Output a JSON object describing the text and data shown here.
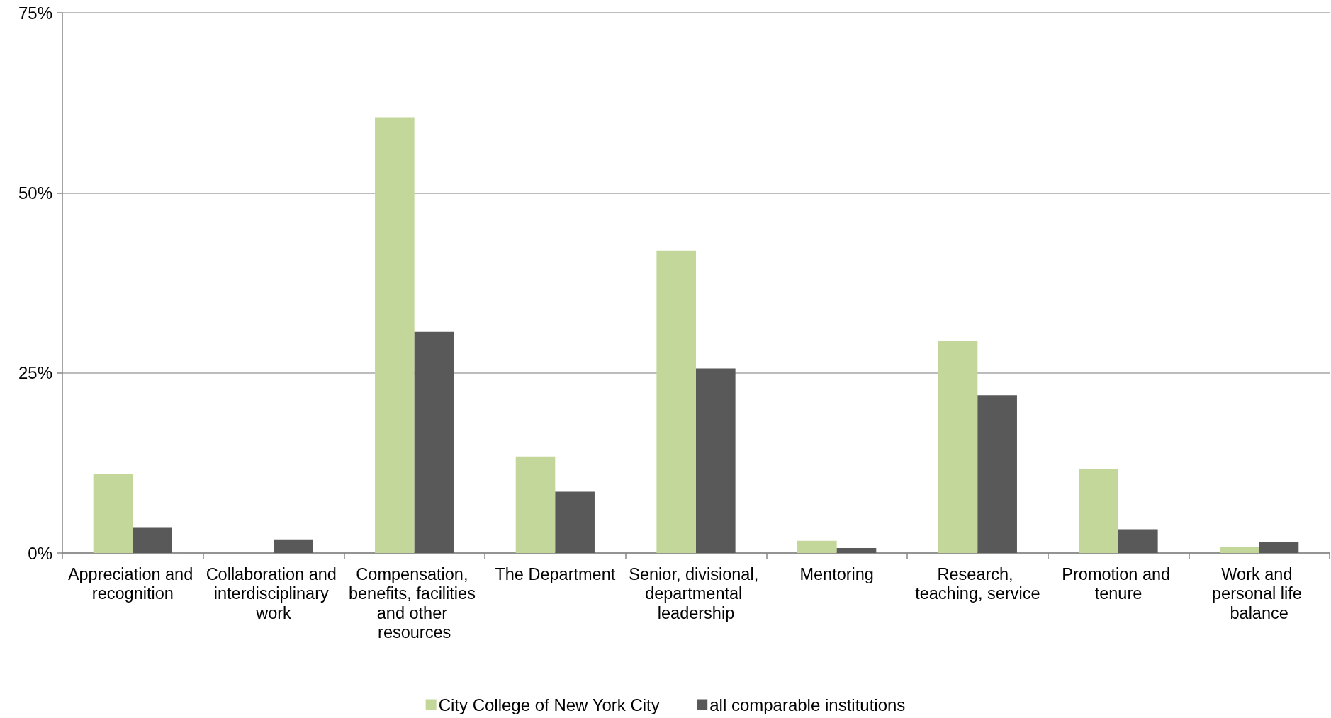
{
  "chart_data": {
    "type": "bar",
    "categories": [
      "Appreciation and recognition",
      "Collaboration and interdisciplinary work",
      "Compensation, benefits, facilities and other resources",
      "The Department",
      "Senior, divisional, departmental leadership",
      "Mentoring",
      "Research, teaching, service",
      "Promotion and tenure",
      "Work and personal life balance"
    ],
    "series": [
      {
        "name": "City College of New York City",
        "color": "#c4d79b",
        "values": [
          10.9,
          0,
          60.5,
          13.4,
          42.0,
          1.7,
          29.4,
          11.7,
          0.8
        ]
      },
      {
        "name": "all comparable institutions",
        "color": "#595959",
        "values": [
          3.6,
          1.9,
          30.7,
          8.5,
          25.6,
          0.7,
          21.9,
          3.3,
          1.5
        ]
      }
    ],
    "ylim": [
      0,
      75
    ],
    "yticks": [
      {
        "value": 0,
        "label": "0%"
      },
      {
        "value": 25,
        "label": "25%"
      },
      {
        "value": 50,
        "label": "50%"
      },
      {
        "value": 75,
        "label": "75%"
      }
    ],
    "grid": "y",
    "legend": "bottom"
  }
}
